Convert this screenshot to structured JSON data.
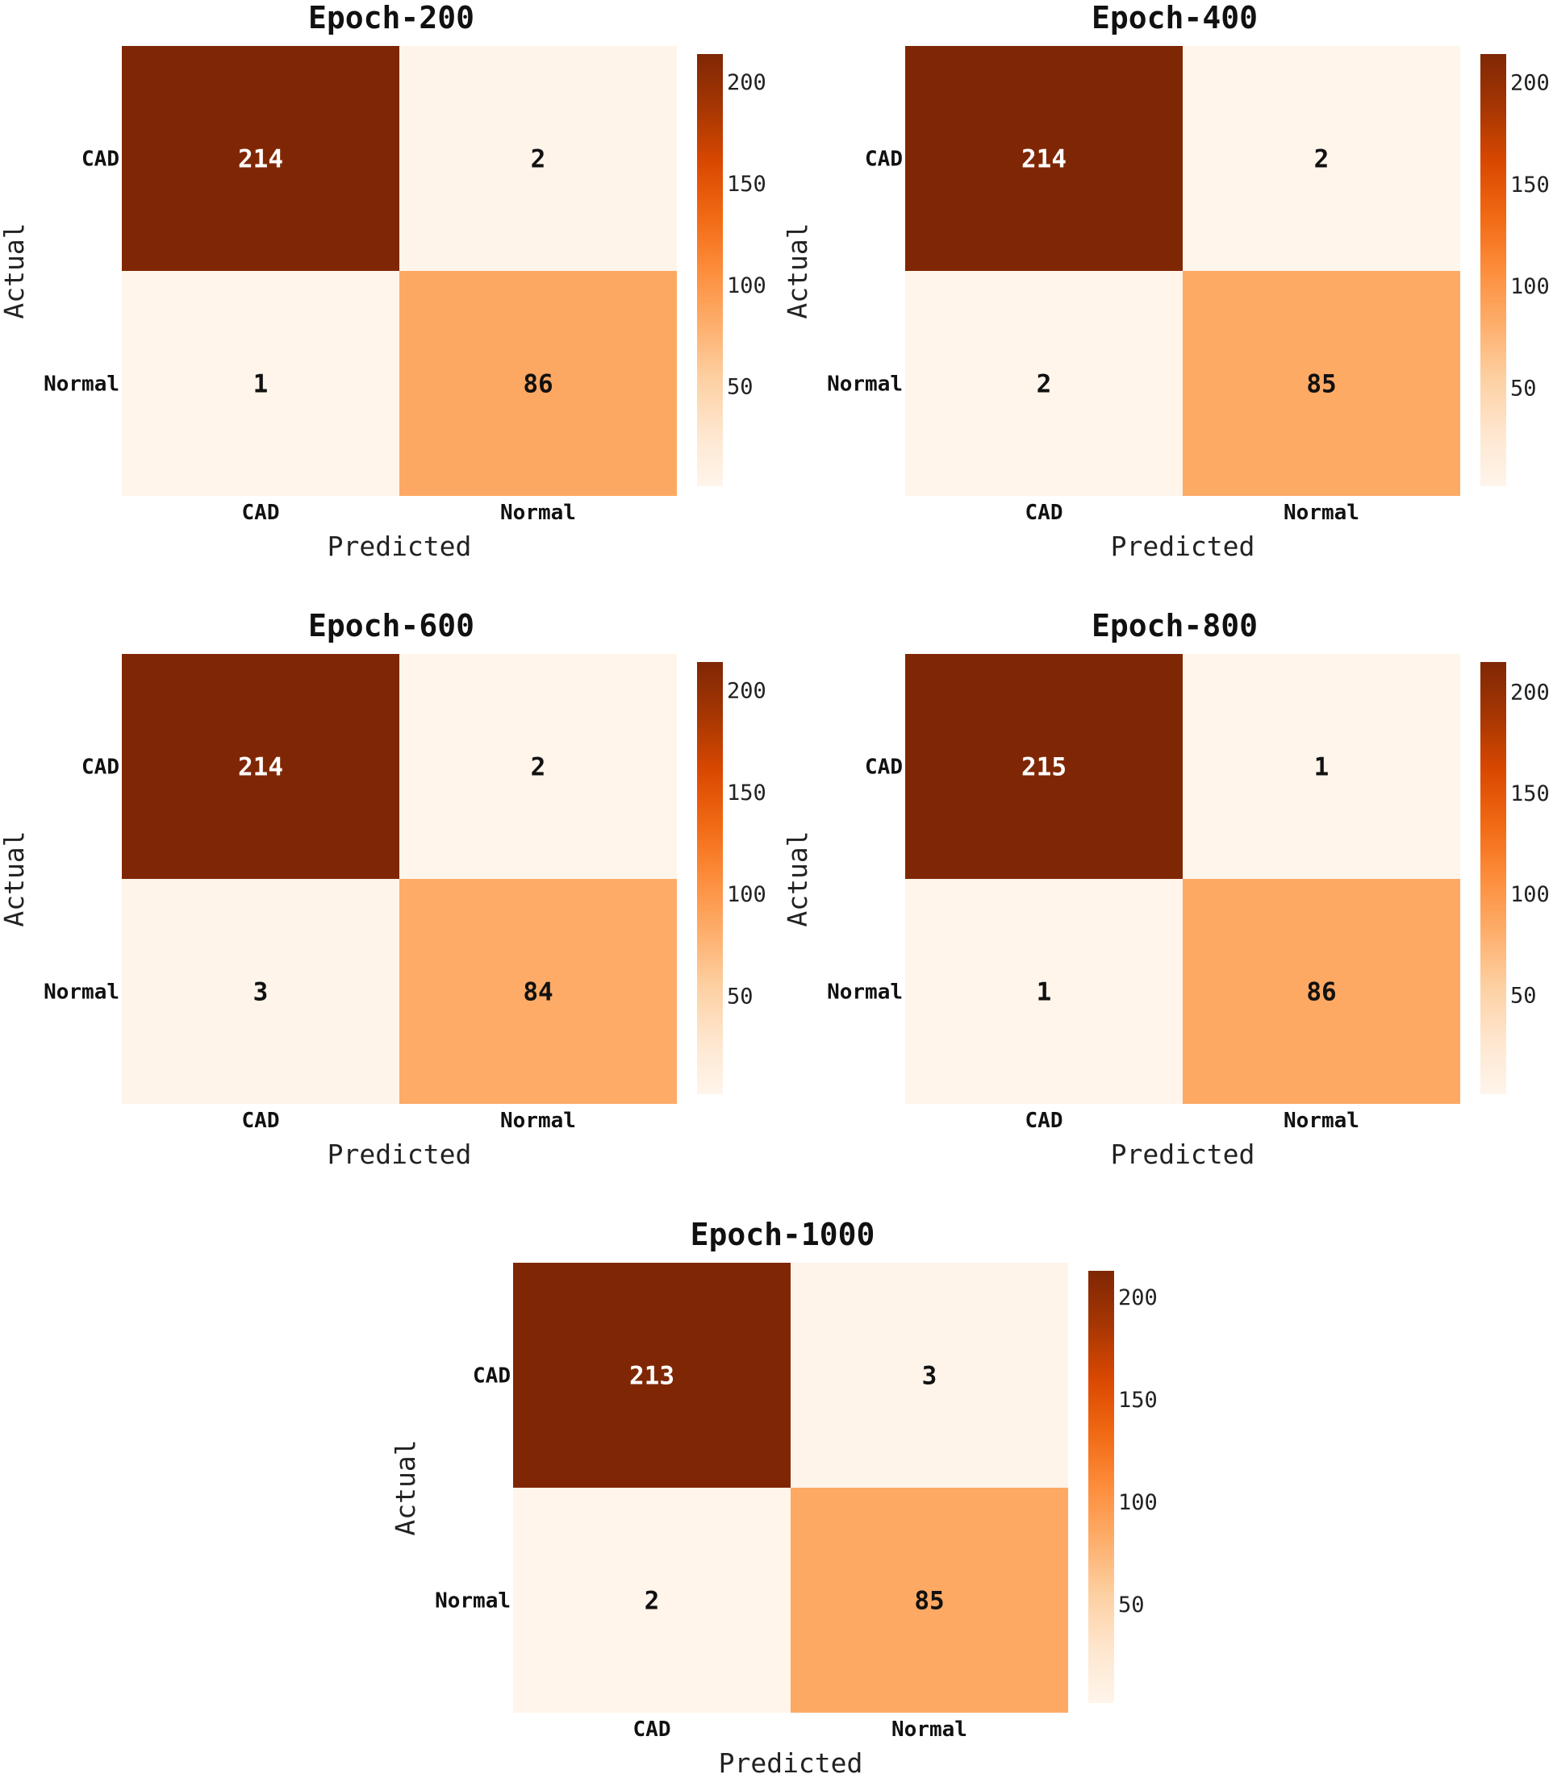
{
  "chart_data": [
    {
      "type": "heatmap",
      "title": "Epoch-200",
      "xlabel": "Predicted",
      "ylabel": "Actual",
      "x_categories": [
        "CAD",
        "Normal"
      ],
      "y_categories": [
        "CAD",
        "Normal"
      ],
      "matrix": [
        [
          214,
          2
        ],
        [
          1,
          86
        ]
      ],
      "colorbar": {
        "min": 1,
        "max": 214,
        "ticks": [
          50,
          100,
          150,
          200
        ],
        "colormap": "Oranges"
      }
    },
    {
      "type": "heatmap",
      "title": "Epoch-400",
      "xlabel": "Predicted",
      "ylabel": "Actual",
      "x_categories": [
        "CAD",
        "Normal"
      ],
      "y_categories": [
        "CAD",
        "Normal"
      ],
      "matrix": [
        [
          214,
          2
        ],
        [
          2,
          85
        ]
      ],
      "colorbar": {
        "min": 2,
        "max": 214,
        "ticks": [
          50,
          100,
          150,
          200
        ],
        "colormap": "Oranges"
      }
    },
    {
      "type": "heatmap",
      "title": "Epoch-600",
      "xlabel": "Predicted",
      "ylabel": "Actual",
      "x_categories": [
        "CAD",
        "Normal"
      ],
      "y_categories": [
        "CAD",
        "Normal"
      ],
      "matrix": [
        [
          214,
          2
        ],
        [
          3,
          84
        ]
      ],
      "colorbar": {
        "min": 2,
        "max": 214,
        "ticks": [
          50,
          100,
          150,
          200
        ],
        "colormap": "Oranges"
      }
    },
    {
      "type": "heatmap",
      "title": "Epoch-800",
      "xlabel": "Predicted",
      "ylabel": "Actual",
      "x_categories": [
        "CAD",
        "Normal"
      ],
      "y_categories": [
        "CAD",
        "Normal"
      ],
      "matrix": [
        [
          215,
          1
        ],
        [
          1,
          86
        ]
      ],
      "colorbar": {
        "min": 1,
        "max": 215,
        "ticks": [
          50,
          100,
          150,
          200
        ],
        "colormap": "Oranges"
      }
    },
    {
      "type": "heatmap",
      "title": "Epoch-1000",
      "xlabel": "Predicted",
      "ylabel": "Actual",
      "x_categories": [
        "CAD",
        "Normal"
      ],
      "y_categories": [
        "CAD",
        "Normal"
      ],
      "matrix": [
        [
          213,
          3
        ],
        [
          2,
          85
        ]
      ],
      "colorbar": {
        "min": 2,
        "max": 213,
        "ticks": [
          50,
          100,
          150,
          200
        ],
        "colormap": "Oranges"
      }
    }
  ],
  "colors": {
    "colormap_stops": [
      "#fff5eb",
      "#fee6ce",
      "#fdd0a2",
      "#fdae6b",
      "#fd8d3c",
      "#f16913",
      "#d94801",
      "#a63603",
      "#7f2704"
    ],
    "text_dark": "#111111",
    "text_light": "#ffffff"
  }
}
